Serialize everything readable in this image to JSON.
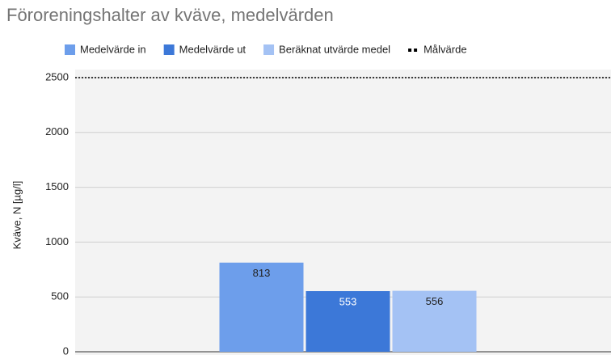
{
  "chart_data": {
    "type": "bar",
    "title": "Föroreningshalter av kväve, medelvärden",
    "y_label": "Kväve, N [µg/l]",
    "categories": [
      null
    ],
    "series": [
      {
        "name": "Medelvärde in",
        "color": "#6d9eeb",
        "values": [
          813
        ]
      },
      {
        "name": "Medelvärde ut",
        "color": "#3c78d8",
        "values": [
          553
        ]
      },
      {
        "name": "Beräknat utvärde medel",
        "color": "#a4c2f4",
        "values": [
          556
        ]
      },
      {
        "name": "Målvärde",
        "color": "#000000",
        "type": "line",
        "dash": true,
        "values": [
          2500
        ]
      }
    ],
    "ylim": [
      0,
      2500
    ],
    "yticks": [
      0,
      500,
      1000,
      1500,
      2000,
      2500
    ],
    "grid": true,
    "legend": "top"
  }
}
